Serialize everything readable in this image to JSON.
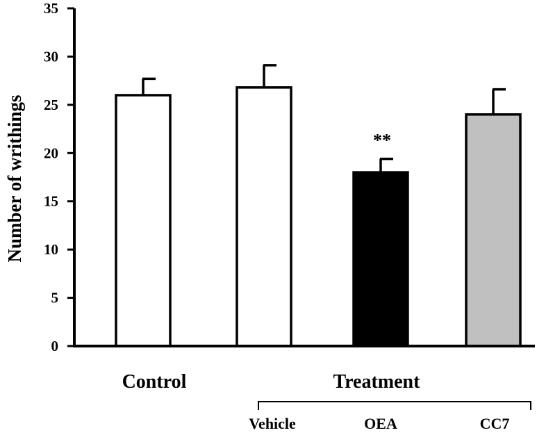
{
  "chart_data": {
    "type": "bar",
    "ylabel": "Number of writhings",
    "xlabel": "",
    "ylim": [
      0,
      35
    ],
    "yticks": [
      0,
      5,
      10,
      15,
      20,
      25,
      30,
      35
    ],
    "grid": false,
    "categories": [
      "Control",
      "Vehicle",
      "OEA",
      "CC7"
    ],
    "values": [
      26.0,
      26.8,
      18.0,
      24.0
    ],
    "errors": [
      1.7,
      2.3,
      1.4,
      2.6
    ],
    "bar_colors": [
      "#ffffff",
      "#ffffff",
      "#000000",
      "#c0c0c0"
    ],
    "annotations": [
      {
        "category": "OEA",
        "text": "**"
      }
    ],
    "groups": {
      "control_label": "Control",
      "treatment_label": "Treatment",
      "treatment_members": [
        "Vehicle",
        "OEA",
        "CC7"
      ]
    }
  }
}
